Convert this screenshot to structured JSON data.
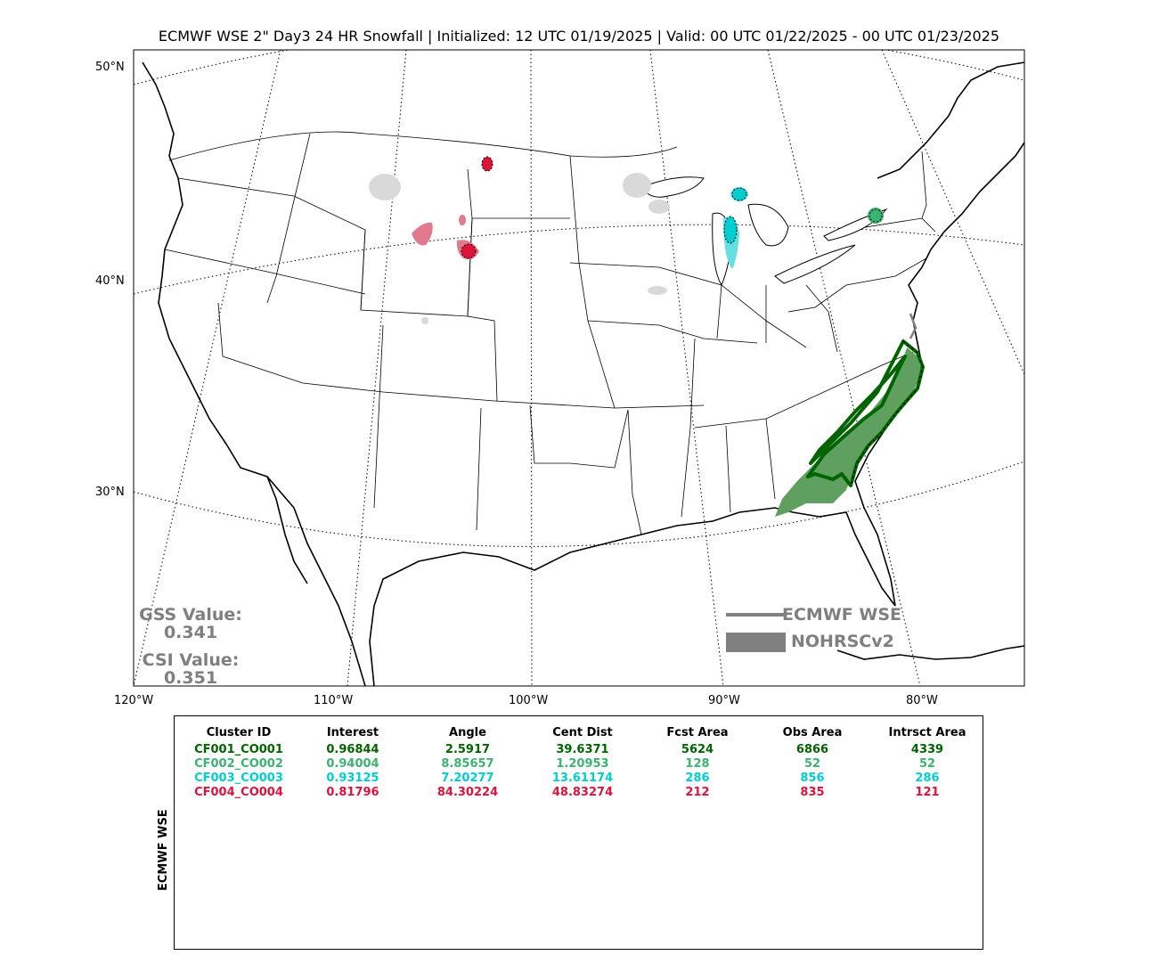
{
  "title": "ECMWF WSE 2\" Day3 24 HR Snowfall | Initialized: 12 UTC 01/19/2025 | Valid: 00 UTC 01/22/2025 - 00 UTC 01/23/2025",
  "lat_labels": [
    "50°N",
    "40°N",
    "30°N"
  ],
  "lon_labels": [
    "120°W",
    "110°W",
    "100°W",
    "90°W",
    "80°W"
  ],
  "gss_label": "GSS Value:",
  "gss_value": "0.341",
  "csi_label": "CSI Value:",
  "csi_value": "0.351",
  "legend": {
    "forecast_label": "ECMWF WSE",
    "observed_label": "NOHRSCv2",
    "text_color": "#7f7f7f",
    "line_color": "#808080"
  },
  "table": {
    "side_label": "ECMWF WSE",
    "headers": [
      "Cluster ID",
      "Interest",
      "Angle",
      "Cent Dist",
      "Fcst Area",
      "Obs Area",
      "Intrsct Area"
    ],
    "rows": [
      {
        "color": "#006400",
        "cells": [
          "CF001_CO001",
          "0.96844",
          "2.5917",
          "39.6371",
          "5624",
          "6866",
          "4339"
        ]
      },
      {
        "color": "#3cb371",
        "cells": [
          "CF002_CO002",
          "0.94004",
          "8.85657",
          "1.20953",
          "128",
          "52",
          "52"
        ]
      },
      {
        "color": "#00ced1",
        "cells": [
          "CF003_CO003",
          "0.93125",
          "7.20277",
          "13.61174",
          "286",
          "856",
          "286"
        ]
      },
      {
        "color": "#dc143c",
        "cells": [
          "CF004_CO004",
          "0.81796",
          "84.30224",
          "48.83274",
          "212",
          "835",
          "121"
        ]
      }
    ]
  },
  "colors": {
    "cluster1": "#006400",
    "cluster1_fill": "#5f9f5f",
    "cluster2": "#3cb371",
    "cluster3": "#00ced1",
    "cluster3_fill": "#66dfe0",
    "cluster4": "#dc143c",
    "cluster4_fill": "#e07a8c",
    "unmatched": "#d9d9d9"
  }
}
